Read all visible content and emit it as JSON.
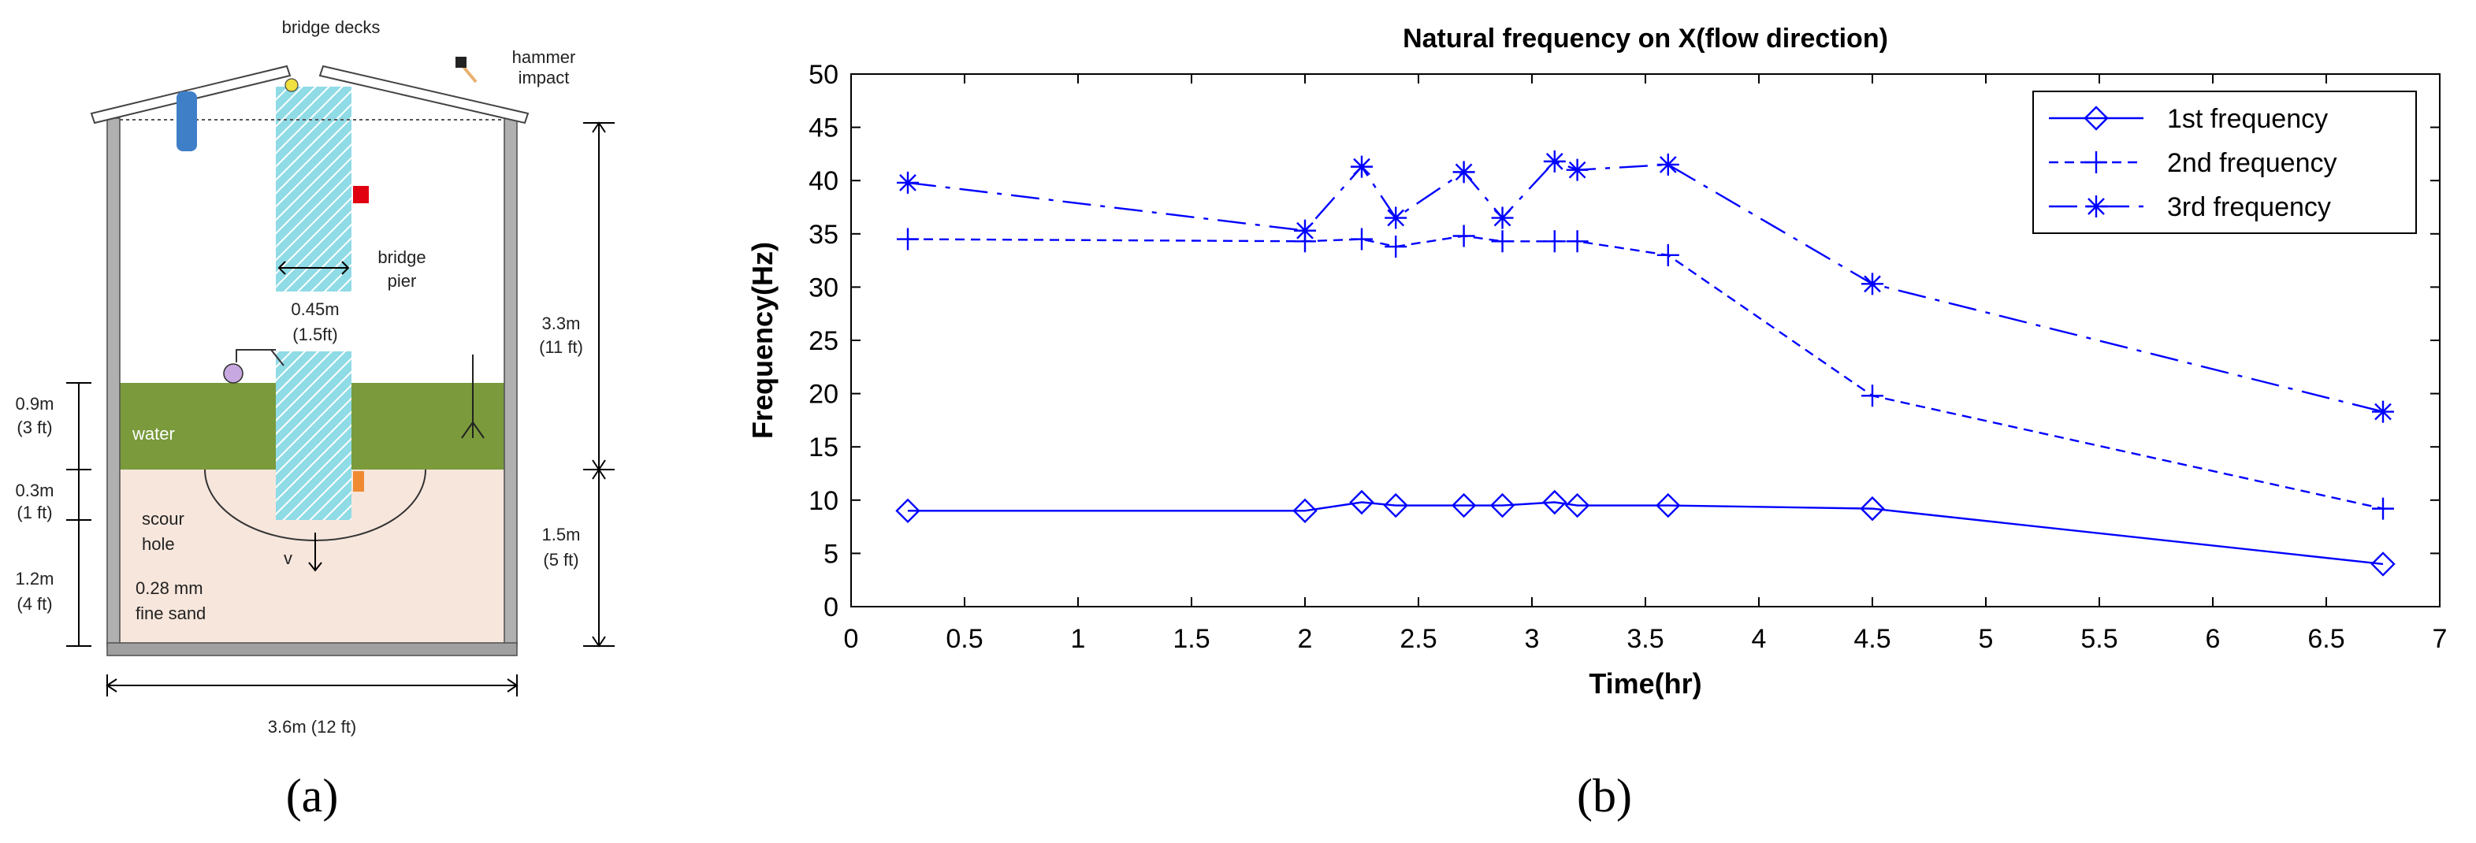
{
  "diagram": {
    "bridge_decks": "bridge decks",
    "hammer_impact": [
      "hammer",
      "impact"
    ],
    "pier_width": [
      "0.45m",
      "(1.5ft)"
    ],
    "bridge_pier": [
      "bridge",
      "pier"
    ],
    "height_upper": [
      "3.3m",
      "(11 ft)"
    ],
    "water_depth": [
      "0.9m",
      "(3 ft)"
    ],
    "water": "water",
    "scour_depth": [
      "0.3m",
      "(1 ft)"
    ],
    "scour_hole": [
      "scour",
      "hole"
    ],
    "velocity": "v",
    "sand_depth": [
      "1.2m",
      "(4 ft)"
    ],
    "sand": [
      "0.28 mm",
      "fine sand"
    ],
    "height_lower": [
      "1.5m",
      "(5 ft)"
    ],
    "tank_width": "3.6m (12 ft)"
  },
  "panel_labels": [
    "(a)",
    "(b)"
  ],
  "chart_data": {
    "type": "line",
    "title": "Natural frequency on X(flow direction)",
    "x_label": "Time(hr)",
    "y_label": "Frequency(Hz)",
    "x": [
      0.25,
      2,
      2.25,
      2.4,
      2.7,
      2.87,
      3.1,
      3.2,
      3.6,
      4.5,
      6.75
    ],
    "series": [
      {
        "name": "1st frequency",
        "color": "#0000ff",
        "marker": "diamond",
        "linestyle": "solid",
        "values": [
          9,
          9,
          9.8,
          9.5,
          9.5,
          9.5,
          9.8,
          9.5,
          9.5,
          9.2,
          4
        ]
      },
      {
        "name": "2nd frequency",
        "color": "#0000ff",
        "marker": "plus",
        "linestyle": "dashed",
        "values": [
          34.5,
          34.3,
          34.5,
          33.8,
          34.8,
          34.3,
          34.3,
          34.3,
          33,
          19.8,
          9.2
        ]
      },
      {
        "name": "3rd frequency",
        "color": "#0000ff",
        "marker": "asterisk",
        "linestyle": "dashdot",
        "values": [
          39.8,
          35.3,
          41.3,
          36.5,
          40.8,
          36.5,
          41.8,
          41,
          41.5,
          30.3,
          18.3
        ]
      }
    ],
    "xlim": [
      0,
      7
    ],
    "xticks": [
      0,
      0.5,
      1,
      1.5,
      2,
      2.5,
      3,
      3.5,
      4,
      4.5,
      5,
      5.5,
      6,
      6.5,
      7
    ],
    "ylim": [
      0,
      50
    ],
    "yticks": [
      0,
      5,
      10,
      15,
      20,
      25,
      30,
      35,
      40,
      45,
      50
    ],
    "grid": false,
    "legend": "upper right"
  }
}
